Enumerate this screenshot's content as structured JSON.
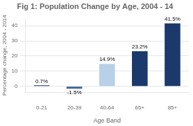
{
  "chart_data": {
    "type": "bar",
    "title": "Fig 1: Population Change by Age, 2004 - 14",
    "xlabel": "Age Band",
    "ylabel": "Percentage change, 2004 - 2014",
    "categories": [
      "0-21",
      "20-39",
      "40-64",
      "65+",
      "85+"
    ],
    "values": [
      0.7,
      -1.5,
      14.9,
      23.2,
      41.5
    ],
    "value_labels": [
      "0.7%",
      "-1.5%",
      "14.9%",
      "23.2%",
      "41.5%"
    ],
    "colors": [
      "#1F3F6E",
      "#3A6096",
      "#B8D0E8",
      "#1B3A6B",
      "#1B3A6B"
    ],
    "ylim": [
      -4,
      45
    ],
    "yticks": [
      0,
      10,
      20,
      30,
      40
    ],
    "grid": true,
    "data_labels": true
  }
}
